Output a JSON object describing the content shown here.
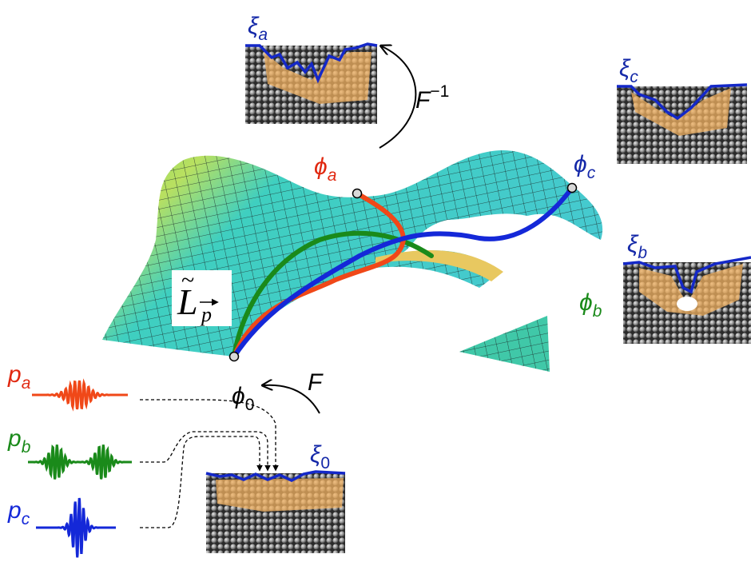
{
  "surface_label": {
    "symbol": "L",
    "sub": "p"
  },
  "maps": {
    "forward": {
      "symbol": "F"
    },
    "inverse": {
      "symbol": "F",
      "sup": "−1"
    }
  },
  "states": {
    "origin": {
      "symbol": "ϕ",
      "sub": "0"
    },
    "a": {
      "symbol": "ϕ",
      "sub": "a"
    },
    "b": {
      "symbol": "ϕ",
      "sub": "b"
    },
    "c": {
      "symbol": "ϕ",
      "sub": "c"
    }
  },
  "structures": {
    "origin": {
      "symbol": "ξ",
      "sub": "0"
    },
    "a": {
      "symbol": "ξ",
      "sub": "a"
    },
    "b": {
      "symbol": "ξ",
      "sub": "b"
    },
    "c": {
      "symbol": "ξ",
      "sub": "c"
    }
  },
  "pulses": {
    "a": {
      "symbol": "p",
      "sub": "a"
    },
    "b": {
      "symbol": "p",
      "sub": "b"
    },
    "c": {
      "symbol": "p",
      "sub": "c"
    }
  }
}
